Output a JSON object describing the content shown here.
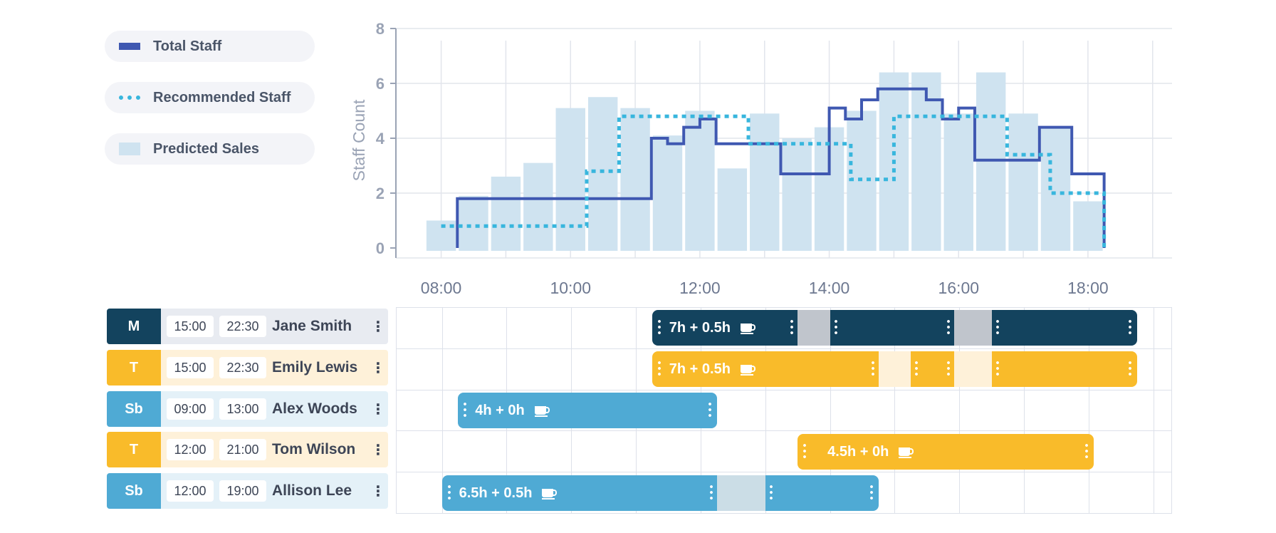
{
  "legend": [
    {
      "label": "Total Staff",
      "swatch": "solid",
      "color": "#3f58b1"
    },
    {
      "label": "Recommended Staff",
      "swatch": "dotted",
      "color": "#38b6dd"
    },
    {
      "label": "Predicted Sales",
      "swatch": "bar",
      "color": "#cfe3f0"
    }
  ],
  "chart_data": {
    "type": "bar",
    "ylabel": "Staff Count",
    "ylim": [
      0,
      8
    ],
    "yticks": [
      0,
      2,
      4,
      6,
      8
    ],
    "xlim": [
      "07:18",
      "19:18"
    ],
    "xticks": [
      "08:00",
      "10:00",
      "12:00",
      "14:00",
      "16:00",
      "18:00"
    ],
    "grid": true,
    "series": [
      {
        "name": "Predicted Sales",
        "kind": "bar",
        "color": "#cfe3f0",
        "bin_minutes": 30,
        "x": [
          "08:00",
          "08:30",
          "09:00",
          "09:30",
          "10:00",
          "10:30",
          "11:00",
          "11:30",
          "12:00",
          "12:30",
          "13:00",
          "13:30",
          "14:00",
          "14:30",
          "15:00",
          "15:30",
          "16:00",
          "16:30",
          "17:00",
          "17:30",
          "18:00"
        ],
        "values": [
          1.0,
          1.9,
          2.6,
          3.1,
          5.1,
          5.5,
          5.1,
          4.1,
          5.0,
          2.9,
          4.9,
          4.0,
          4.4,
          5.0,
          6.4,
          6.4,
          4.9,
          6.4,
          4.9,
          4.4,
          1.7
        ]
      },
      {
        "name": "Total Staff",
        "kind": "step",
        "color": "#3f58b1",
        "x": [
          "08:15",
          "08:15",
          "11:15",
          "11:30",
          "11:45",
          "12:00",
          "12:15",
          "13:15",
          "14:00",
          "14:15",
          "14:30",
          "14:45",
          "15:00",
          "15:30",
          "15:45",
          "16:00",
          "16:15",
          "17:15",
          "17:45",
          "18:15"
        ],
        "values": [
          0,
          1.8,
          4.0,
          3.8,
          4.4,
          4.7,
          3.8,
          2.7,
          5.1,
          4.7,
          5.4,
          5.8,
          5.8,
          5.4,
          4.7,
          5.1,
          3.2,
          4.4,
          2.7,
          0
        ]
      },
      {
        "name": "Recommended Staff",
        "kind": "step",
        "color": "#38b6dd",
        "dashed": true,
        "x": [
          "08:00",
          "10:15",
          "10:45",
          "12:45",
          "14:20",
          "14:40",
          "15:00",
          "16:45",
          "17:10",
          "17:25",
          "17:45",
          "18:15"
        ],
        "values": [
          0.8,
          2.8,
          4.8,
          3.8,
          2.5,
          2.5,
          4.8,
          3.4,
          3.4,
          2.0,
          2.0,
          0
        ]
      }
    ]
  },
  "schedule": {
    "rows": [
      {
        "role": "M",
        "start": "15:00",
        "end": "22:30",
        "name": "Jane Smith",
        "role_color": "#13435e",
        "row_bg": "#e8ebf1"
      },
      {
        "role": "T",
        "start": "15:00",
        "end": "22:30",
        "name": "Emily Lewis",
        "role_color": "#f9bb2a",
        "row_bg": "#fef1d9"
      },
      {
        "role": "Sb",
        "start": "09:00",
        "end": "13:00",
        "name": "Alex Woods",
        "role_color": "#4faad4",
        "row_bg": "#e4f1f8"
      },
      {
        "role": "T",
        "start": "12:00",
        "end": "21:00",
        "name": "Tom Wilson",
        "role_color": "#f9bb2a",
        "row_bg": "#fef1d9"
      },
      {
        "role": "Sb",
        "start": "12:00",
        "end": "19:00",
        "name": "Allison Lee",
        "role_color": "#4faad4",
        "row_bg": "#e4f1f8"
      }
    ],
    "shifts": [
      {
        "label": "7h + 0.5h",
        "color": "#13435e",
        "break_color": "#c0c5cc",
        "start": "11:15",
        "end": "18:45",
        "breaks": [
          [
            "13:30",
            "14:00"
          ],
          [
            "15:55",
            "16:30"
          ]
        ]
      },
      {
        "label": "7h + 0.5h",
        "color": "#f9bb2a",
        "break_color": "#fef1d9",
        "start": "11:15",
        "end": "18:45",
        "breaks": [
          [
            "14:45",
            "15:15"
          ],
          [
            "15:55",
            "16:30"
          ]
        ]
      },
      {
        "label": "4h + 0h",
        "color": "#4faad4",
        "break_color": "#cbdde6",
        "start": "08:15",
        "end": "12:15",
        "breaks": []
      },
      {
        "label": "4.5h + 0h",
        "color": "#f9bb2a",
        "break_color": "#fef1d9",
        "start": "13:30",
        "end": "18:05",
        "breaks": []
      },
      {
        "label": "6.5h + 0.5h",
        "color": "#4faad4",
        "break_color": "#cbdde6",
        "start": "08:00",
        "end": "14:45",
        "breaks": [
          [
            "12:15",
            "13:00"
          ]
        ]
      }
    ]
  }
}
